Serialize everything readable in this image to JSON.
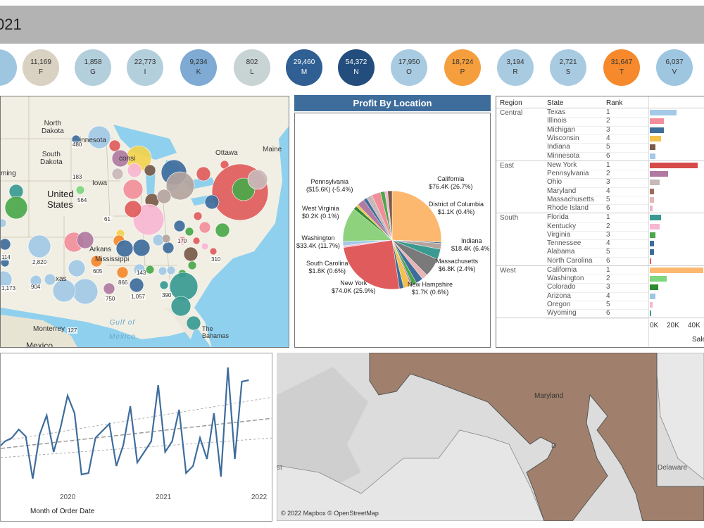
{
  "header": {
    "title": "021"
  },
  "kpis": [
    {
      "value": "",
      "letter": "",
      "color": "#9ec6e0"
    },
    {
      "value": "11,169",
      "letter": "F",
      "color": "#d9d1c1"
    },
    {
      "value": "1,858",
      "letter": "G",
      "color": "#b4cfdc"
    },
    {
      "value": "22,773",
      "letter": "I",
      "color": "#b4cfdc"
    },
    {
      "value": "9,234",
      "letter": "K",
      "color": "#7eaad3"
    },
    {
      "value": "802",
      "letter": "L",
      "color": "#c8d3d3"
    },
    {
      "value": "29,460",
      "letter": "M",
      "color": "#2f5f93"
    },
    {
      "value": "54,372",
      "letter": "N",
      "color": "#234d7c"
    },
    {
      "value": "17,950",
      "letter": "O",
      "color": "#a9cbe1"
    },
    {
      "value": "18,724",
      "letter": "P",
      "color": "#f59e3d"
    },
    {
      "value": "3,194",
      "letter": "R",
      "color": "#a9cbe1"
    },
    {
      "value": "2,721",
      "letter": "S",
      "color": "#a9cbe1"
    },
    {
      "value": "31,647",
      "letter": "T",
      "color": "#f5892c"
    },
    {
      "value": "6,037",
      "letter": "V",
      "color": "#9ec6e0"
    }
  ],
  "map": {
    "labels": {
      "north_dakota": "North\nDakota",
      "south_dakota": "South\nDakota",
      "minnesota": "innesota",
      "iowa": "Iowa",
      "united_states": "United\nStates",
      "ottawa": "Ottawa",
      "maine": "Maine",
      "arkansas": "Arkans",
      "mississippi": "Mississippi",
      "texas": "xas",
      "gulf": "Gulf of\nMexico",
      "monterrey": "Monterrey",
      "mexico": "Mexico",
      "bahamas": "The\nBahamas",
      "wyoming": "ming",
      "wisconsin": "consi"
    },
    "values": [
      "480",
      "183",
      "564",
      "61",
      "2,820",
      "904",
      "1,173",
      "605",
      "866",
      "143",
      "1,057",
      "750",
      "390",
      "170",
      "310",
      "127",
      "114"
    ]
  },
  "pie": {
    "title": "Profit By Location",
    "labels": [
      {
        "name": "California",
        "value": "$76.4K (26.7%)"
      },
      {
        "name": "District of Columbia",
        "value": "$1.1K (0.4%)"
      },
      {
        "name": "Indiana",
        "value": "$18.4K (6.4%)"
      },
      {
        "name": "Massachusetts",
        "value": "$6.8K (2.4%)"
      },
      {
        "name": "New Hampshire",
        "value": "$1.7K (0.6%)"
      },
      {
        "name": "New York",
        "value": "$74.0K (25.9%)"
      },
      {
        "name": "South Carolina",
        "value": "$1.8K (0.6%)"
      },
      {
        "name": "Washington",
        "value": "$33.4K (11.7%)"
      },
      {
        "name": "West Virginia",
        "value": "$0.2K (0.1%)"
      },
      {
        "name": "Pennsylvania",
        "value": "($15.6K) (-5.4%)"
      }
    ]
  },
  "table": {
    "headers": {
      "region": "Region",
      "state": "State",
      "rank": "Rank"
    },
    "axis_ticks": [
      "0K",
      "20K",
      "40K"
    ],
    "axis_title": "Sale",
    "regions": [
      {
        "name": "Central",
        "rows": [
          {
            "state": "Texas",
            "rank": "1",
            "sales": 19,
            "color": "#a3c9e6"
          },
          {
            "state": "Illinois",
            "rank": "2",
            "sales": 10,
            "color": "#f28e9a"
          },
          {
            "state": "Michigan",
            "rank": "3",
            "sales": 10,
            "color": "#3e6d9c"
          },
          {
            "state": "Wisconsin",
            "rank": "4",
            "sales": 8,
            "color": "#f2c14e"
          },
          {
            "state": "Indiana",
            "rank": "5",
            "sales": 4,
            "color": "#7a5a48"
          },
          {
            "state": "Minnesota",
            "rank": "6",
            "sales": 4,
            "color": "#a3c9e6"
          }
        ]
      },
      {
        "name": "East",
        "rows": [
          {
            "state": "New York",
            "rank": "1",
            "sales": 34,
            "color": "#d64a4a"
          },
          {
            "state": "Pennsylvania",
            "rank": "2",
            "sales": 13,
            "color": "#b07aa1"
          },
          {
            "state": "Ohio",
            "rank": "3",
            "sales": 7,
            "color": "#c9b8b8"
          },
          {
            "state": "Maryland",
            "rank": "4",
            "sales": 3,
            "color": "#9c6b5a"
          },
          {
            "state": "Massachusetts",
            "rank": "5",
            "sales": 3,
            "color": "#e8b4b4"
          },
          {
            "state": "Rhode Island",
            "rank": "6",
            "sales": 2,
            "color": "#e8b4d4"
          }
        ]
      },
      {
        "name": "South",
        "rows": [
          {
            "state": "Florida",
            "rank": "1",
            "sales": 8,
            "color": "#3a9a92"
          },
          {
            "state": "Kentucky",
            "rank": "2",
            "sales": 7,
            "color": "#f7b6d2"
          },
          {
            "state": "Virginia",
            "rank": "3",
            "sales": 4,
            "color": "#4aa84a"
          },
          {
            "state": "Tennessee",
            "rank": "4",
            "sales": 3,
            "color": "#3e6d9c"
          },
          {
            "state": "Alabama",
            "rank": "5",
            "sales": 3,
            "color": "#3e6d9c"
          },
          {
            "state": "North Carolina",
            "rank": "6",
            "sales": 1,
            "color": "#e05c5c"
          }
        ]
      },
      {
        "name": "West",
        "rows": [
          {
            "state": "California",
            "rank": "1",
            "sales": 38,
            "color": "#fdb870"
          },
          {
            "state": "Washington",
            "rank": "2",
            "sales": 12,
            "color": "#7ed67e"
          },
          {
            "state": "Colorado",
            "rank": "3",
            "sales": 6,
            "color": "#2e8b2e"
          },
          {
            "state": "Arizona",
            "rank": "4",
            "sales": 4,
            "color": "#9ec6e0"
          },
          {
            "state": "Oregon",
            "rank": "5",
            "sales": 2,
            "color": "#f7b6d2"
          },
          {
            "state": "Wyoming",
            "rank": "6",
            "sales": 1,
            "color": "#3a9a92"
          }
        ]
      }
    ]
  },
  "line": {
    "x_ticks": [
      "2020",
      "2021",
      "2022"
    ],
    "x_title": "Month of Order Date",
    "color": "#3e6d9c"
  },
  "md_map": {
    "state": "Maryland",
    "delaware": "Delaware",
    "dc": "D",
    "west": "st",
    "copyright": "© 2022 Mapbox © OpenStreetMap"
  }
}
